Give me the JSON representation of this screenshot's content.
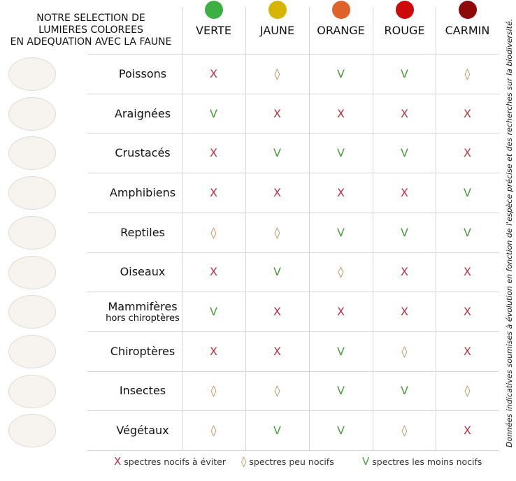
{
  "header": {
    "title_lines": [
      "NOTRE SELECTION DE",
      "LUMIERES COLOREES",
      "EN ADEQUATION AVEC LA FAUNE"
    ]
  },
  "columns": [
    {
      "name": "VERTE",
      "color": "#3cb043"
    },
    {
      "name": "JAUNE",
      "color": "#d6b400"
    },
    {
      "name": "ORANGE",
      "color": "#e0622a"
    },
    {
      "name": "ROUGE",
      "color": "#cc0a0a"
    },
    {
      "name": "CARMIN",
      "color": "#8e0a0a"
    }
  ],
  "rows": [
    {
      "label": "Poissons",
      "cells": [
        "X",
        "◊",
        "V",
        "V",
        "◊"
      ]
    },
    {
      "label": "Araignées",
      "cells": [
        "V",
        "X",
        "X",
        "X",
        "X"
      ]
    },
    {
      "label": "Crustacés",
      "cells": [
        "X",
        "V",
        "V",
        "V",
        "X"
      ]
    },
    {
      "label": "Amphibiens",
      "cells": [
        "X",
        "X",
        "X",
        "X",
        "V"
      ]
    },
    {
      "label": "Reptiles",
      "cells": [
        "◊",
        "◊",
        "V",
        "V",
        "V"
      ]
    },
    {
      "label": "Oiseaux",
      "cells": [
        "X",
        "V",
        "◊",
        "X",
        "X"
      ]
    },
    {
      "label": "Mammifères",
      "sublabel": "hors chiroptères",
      "cells": [
        "V",
        "X",
        "X",
        "X",
        "X"
      ]
    },
    {
      "label": "Chiroptères",
      "cells": [
        "X",
        "X",
        "V",
        "◊",
        "X"
      ]
    },
    {
      "label": "Insectes",
      "cells": [
        "◊",
        "◊",
        "V",
        "V",
        "◊"
      ]
    },
    {
      "label": "Végétaux",
      "cells": [
        "◊",
        "V",
        "V",
        "◊",
        "X"
      ]
    }
  ],
  "legend": [
    {
      "symbol": "X",
      "text": "spectres nocifs à éviter",
      "color": "#b8323f"
    },
    {
      "symbol": "◊",
      "text": "spectres peu nocifs",
      "color": "#b8894a"
    },
    {
      "symbol": "V",
      "text": "spectres les moins nocifs",
      "color": "#4e9a3f"
    }
  ],
  "note": "Données indicatives soumises à évolution en fonction de l'espèce précise et des recherches sur la biodiversité."
}
